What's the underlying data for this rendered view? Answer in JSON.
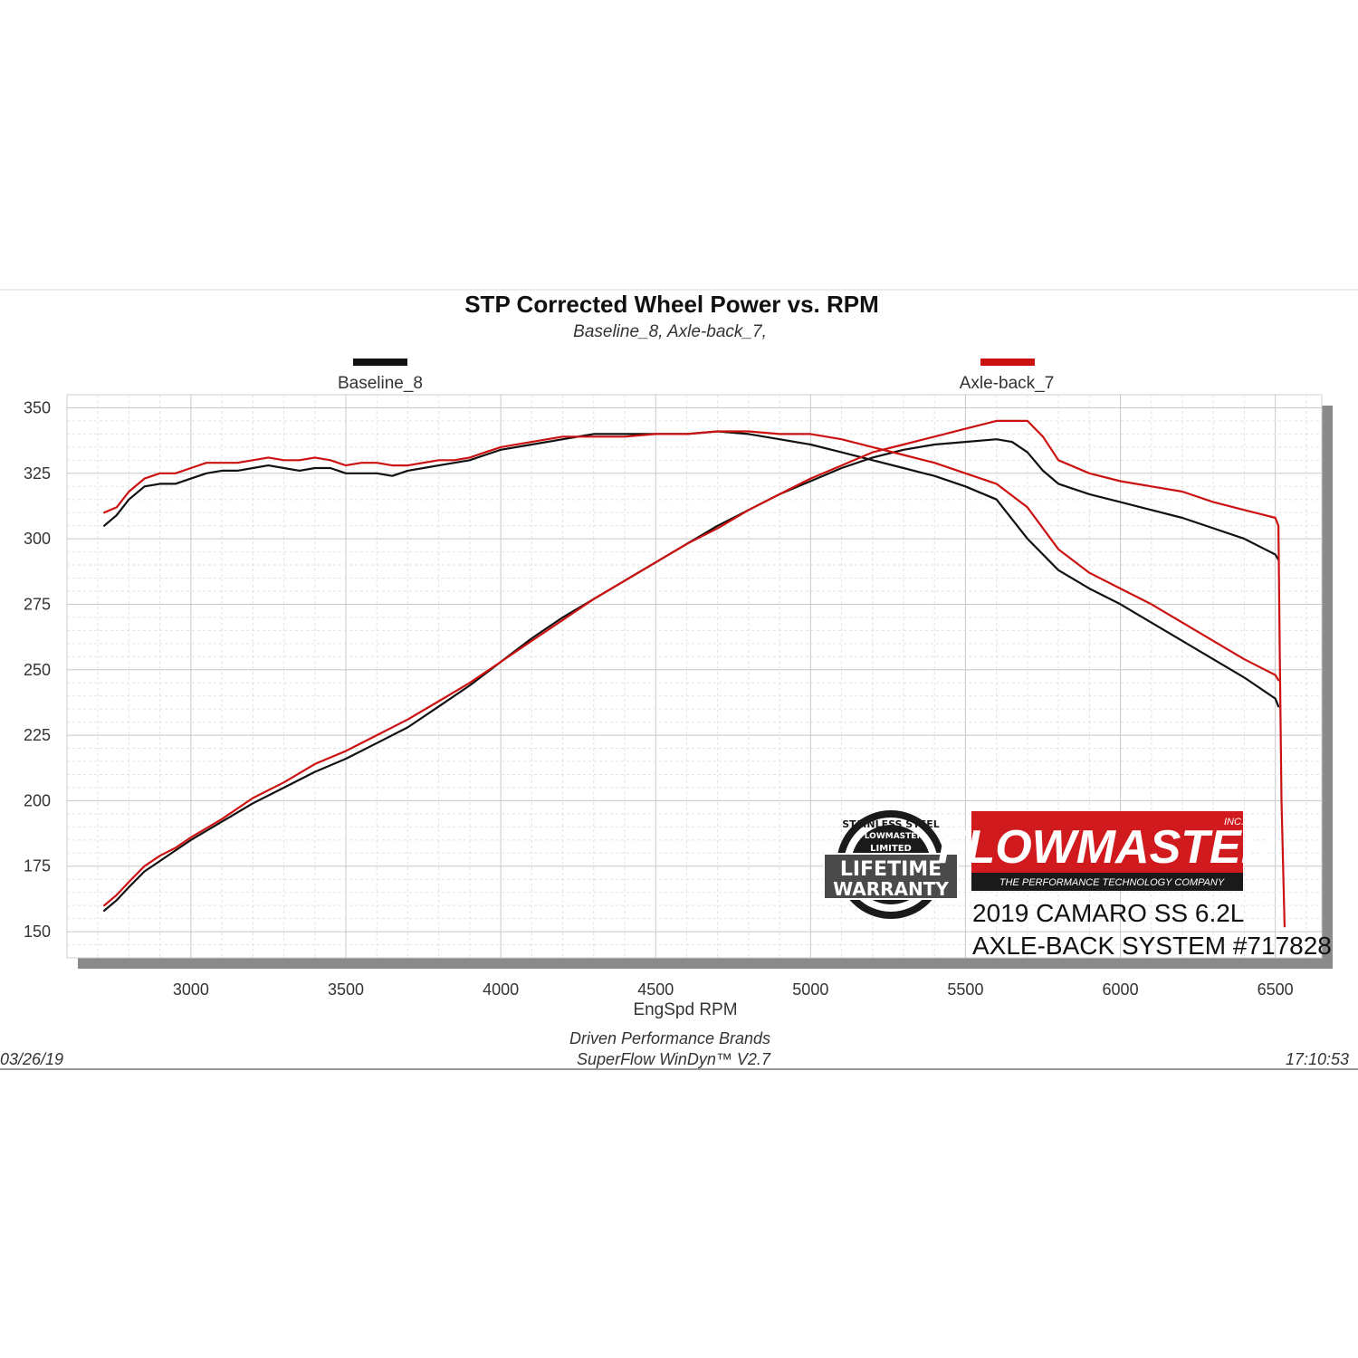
{
  "chart_data": {
    "type": "line",
    "title": "STP Corrected Wheel Power vs. RPM",
    "subtitle": "Baseline_8, Axle-back_7,",
    "xlabel": "EngSpd  RPM",
    "xlim": [
      2600,
      6650
    ],
    "ylim": [
      140,
      355
    ],
    "x_ticks": [
      3000,
      3500,
      4000,
      4500,
      5000,
      5500,
      6000,
      6500
    ],
    "y_ticks": [
      350,
      325,
      300,
      275,
      250,
      225,
      200,
      175,
      150
    ],
    "grid": true,
    "legend_placement": "top",
    "series": [
      {
        "name": "Baseline_8",
        "color": "#111111",
        "curves": [
          {
            "x": [
              2720,
              2760,
              2800,
              2850,
              2900,
              2950,
              3000,
              3050,
              3100,
              3150,
              3200,
              3250,
              3300,
              3350,
              3400,
              3450,
              3500,
              3550,
              3600,
              3650,
              3700,
              3750,
              3800,
              3850,
              3900,
              3950,
              4000,
              4100,
              4200,
              4300,
              4400,
              4500,
              4600,
              4700,
              4800,
              4900,
              5000,
              5100,
              5200,
              5300,
              5400,
              5500,
              5600,
              5700,
              5800,
              5900,
              6000,
              6100,
              6200,
              6300,
              6400,
              6500,
              6510
            ],
            "y": [
              305,
              309,
              315,
              320,
              321,
              321,
              323,
              325,
              326,
              326,
              327,
              328,
              327,
              326,
              327,
              327,
              325,
              325,
              325,
              324,
              326,
              327,
              328,
              329,
              330,
              332,
              334,
              336,
              338,
              340,
              340,
              340,
              340,
              341,
              340,
              338,
              336,
              333,
              330,
              327,
              324,
              320,
              315,
              300,
              288,
              281,
              275,
              268,
              261,
              254,
              247,
              239,
              236
            ]
          },
          {
            "x": [
              2720,
              2760,
              2800,
              2850,
              2900,
              2950,
              3000,
              3100,
              3200,
              3300,
              3400,
              3500,
              3600,
              3700,
              3800,
              3900,
              4000,
              4100,
              4200,
              4300,
              4400,
              4500,
              4600,
              4700,
              4800,
              4900,
              5000,
              5100,
              5200,
              5300,
              5400,
              5500,
              5600,
              5650,
              5700,
              5750,
              5800,
              5900,
              6000,
              6100,
              6200,
              6300,
              6400,
              6500,
              6510
            ],
            "y": [
              158,
              162,
              167,
              173,
              177,
              181,
              185,
              192,
              199,
              205,
              211,
              216,
              222,
              228,
              236,
              244,
              253,
              262,
              270,
              277,
              284,
              291,
              298,
              305,
              311,
              317,
              322,
              327,
              331,
              334,
              336,
              337,
              338,
              337,
              333,
              326,
              321,
              317,
              314,
              311,
              308,
              304,
              300,
              294,
              292
            ]
          }
        ]
      },
      {
        "name": "Axle-back_7",
        "color": "#cc1111",
        "curves": [
          {
            "x": [
              2720,
              2760,
              2800,
              2850,
              2900,
              2950,
              3000,
              3050,
              3100,
              3150,
              3200,
              3250,
              3300,
              3350,
              3400,
              3450,
              3500,
              3550,
              3600,
              3650,
              3700,
              3750,
              3800,
              3850,
              3900,
              3950,
              4000,
              4100,
              4200,
              4300,
              4400,
              4500,
              4600,
              4700,
              4800,
              4900,
              5000,
              5100,
              5200,
              5300,
              5400,
              5500,
              5600,
              5700,
              5800,
              5900,
              6000,
              6100,
              6200,
              6300,
              6400,
              6500,
              6510
            ],
            "y": [
              310,
              312,
              318,
              323,
              325,
              325,
              327,
              329,
              329,
              329,
              330,
              331,
              330,
              330,
              331,
              330,
              328,
              329,
              329,
              328,
              328,
              329,
              330,
              330,
              331,
              333,
              335,
              337,
              339,
              339,
              339,
              340,
              340,
              341,
              341,
              340,
              340,
              338,
              335,
              332,
              329,
              325,
              321,
              312,
              296,
              287,
              281,
              275,
              268,
              261,
              254,
              248,
              246
            ]
          },
          {
            "x": [
              2720,
              2760,
              2800,
              2850,
              2900,
              2950,
              3000,
              3100,
              3200,
              3300,
              3400,
              3500,
              3600,
              3700,
              3800,
              3900,
              4000,
              4100,
              4200,
              4300,
              4400,
              4500,
              4600,
              4700,
              4800,
              4900,
              5000,
              5100,
              5200,
              5300,
              5400,
              5500,
              5600,
              5700,
              5750,
              5800,
              5900,
              6000,
              6100,
              6200,
              6300,
              6400,
              6500,
              6510,
              6515,
              6520,
              6530
            ],
            "y": [
              160,
              164,
              169,
              175,
              179,
              182,
              186,
              193,
              201,
              207,
              214,
              219,
              225,
              231,
              238,
              245,
              253,
              261,
              269,
              277,
              284,
              291,
              298,
              304,
              311,
              317,
              323,
              328,
              333,
              336,
              339,
              342,
              345,
              345,
              339,
              330,
              325,
              322,
              320,
              318,
              314,
              311,
              308,
              305,
              250,
              200,
              152
            ]
          }
        ]
      }
    ]
  },
  "footer": {
    "company": "Driven Performance Brands",
    "software": "SuperFlow WinDyn™  V2.7",
    "date": "03/26/19",
    "time": "17:10:53"
  },
  "caption": {
    "line1": "2019 CAMARO SS 6.2L",
    "line2": "AXLE-BACK SYSTEM #717828"
  },
  "brand": {
    "name": "FLOWMASTER",
    "tagline": "THE PERFORMANCE TECHNOLOGY COMPANY",
    "mark": "INC.",
    "color": "#d01a1e"
  },
  "badge": {
    "ring_text": "STAINLESS STEEL",
    "brand": "FLOWMASTER",
    "limited": "LIMITED",
    "line1": "LIFETIME",
    "line2": "WARRANTY"
  }
}
